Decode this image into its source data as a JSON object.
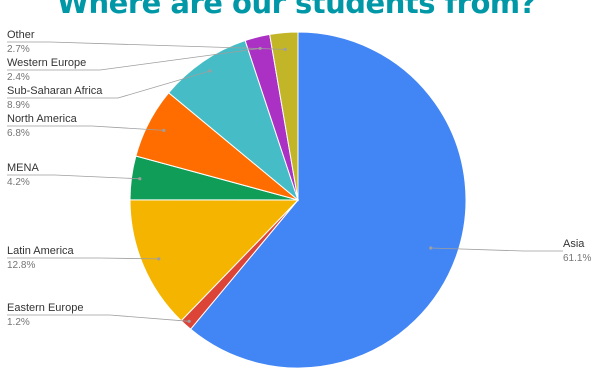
{
  "chart_data": {
    "type": "pie",
    "title": "Where are our students from?",
    "title_color": "#0097a7",
    "start_angle_deg": 0,
    "direction": "clockwise",
    "slices": [
      {
        "name": "Asia",
        "value": 61.1,
        "label": "61.1%",
        "color": "#4285f4",
        "label_side": "right"
      },
      {
        "name": "Eastern Europe",
        "value": 1.2,
        "label": "1.2%",
        "color": "#db4437",
        "label_side": "left"
      },
      {
        "name": "Latin America",
        "value": 12.8,
        "label": "12.8%",
        "color": "#f4b400",
        "label_side": "left"
      },
      {
        "name": "MENA",
        "value": 4.2,
        "label": "4.2%",
        "color": "#0f9d58",
        "label_side": "left"
      },
      {
        "name": "North America",
        "value": 6.8,
        "label": "6.8%",
        "color": "#ff6d00",
        "label_side": "left"
      },
      {
        "name": "Sub-Saharan Africa",
        "value": 8.9,
        "label": "8.9%",
        "color": "#46bdc6",
        "label_side": "left"
      },
      {
        "name": "Western Europe",
        "value": 2.4,
        "label": "2.4%",
        "color": "#ab30c4",
        "label_side": "left"
      },
      {
        "name": "Other",
        "value": 2.7,
        "label": "2.7%",
        "color": "#c2b628",
        "label_side": "left"
      }
    ]
  }
}
